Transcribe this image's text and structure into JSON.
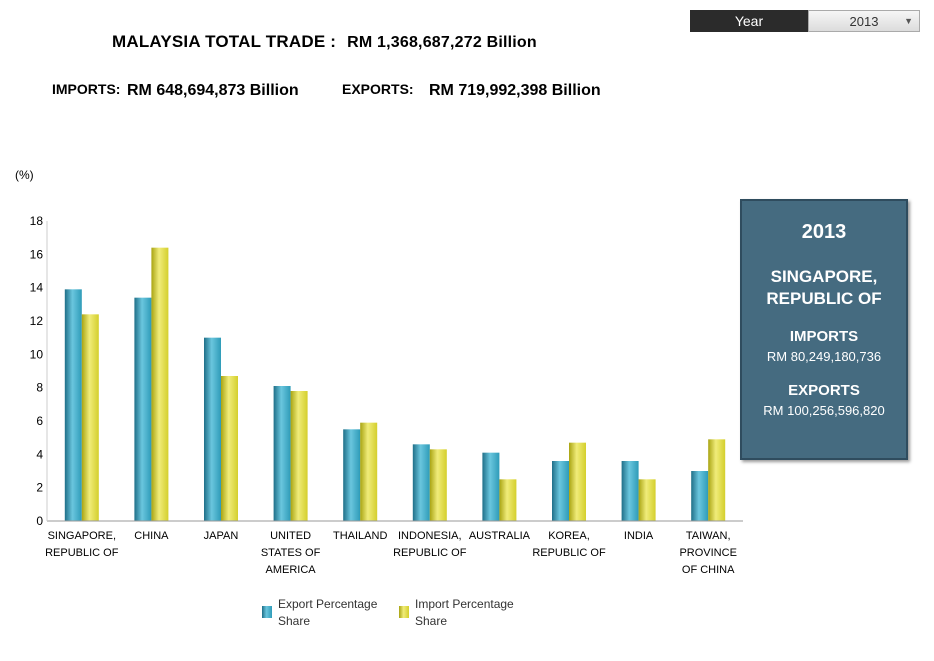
{
  "year_selector": {
    "label": "Year",
    "selected": "2013"
  },
  "summary": {
    "total_label": "MALAYSIA TOTAL TRADE :",
    "total_value": "RM 1,368,687,272 Billion",
    "imports_label": "IMPORTS:",
    "imports_value": "RM 648,694,873 Billion",
    "exports_label": "EXPORTS:",
    "exports_value": "RM 719,992,398 Billion"
  },
  "info_panel": {
    "year": "2013",
    "country": "SINGAPORE, REPUBLIC OF",
    "imports_label": "IMPORTS",
    "imports_value": "RM 80,249,180,736",
    "exports_label": "EXPORTS",
    "exports_value": "RM 100,256,596,820"
  },
  "colors": {
    "export": "#2e9bb8",
    "import": "#d4cf2c",
    "panel": "#456b80"
  },
  "chart_data": {
    "type": "bar",
    "ylabel": "(%)",
    "ylim": [
      0,
      18
    ],
    "yticks": [
      0,
      2,
      4,
      6,
      8,
      10,
      12,
      14,
      16,
      18
    ],
    "grid": false,
    "legend_position": "bottom",
    "categories": [
      [
        "SINGAPORE,",
        "REPUBLIC OF"
      ],
      [
        "CHINA"
      ],
      [
        "JAPAN"
      ],
      [
        "UNITED",
        "STATES OF",
        "AMERICA"
      ],
      [
        "THAILAND"
      ],
      [
        "INDONESIA,",
        "REPUBLIC OF"
      ],
      [
        "AUSTRALIA"
      ],
      [
        "KOREA,",
        "REPUBLIC OF"
      ],
      [
        "INDIA"
      ],
      [
        "TAIWAN,",
        "PROVINCE",
        "OF CHINA"
      ]
    ],
    "series": [
      {
        "name": [
          "Export Percentage",
          "Share"
        ],
        "values": [
          13.9,
          13.4,
          11.0,
          8.1,
          5.5,
          4.6,
          4.1,
          3.6,
          3.6,
          3.0
        ]
      },
      {
        "name": [
          "Import Percentage",
          "Share"
        ],
        "values": [
          12.4,
          16.4,
          8.7,
          7.8,
          5.9,
          4.3,
          2.5,
          4.7,
          2.5,
          4.9
        ]
      }
    ]
  }
}
